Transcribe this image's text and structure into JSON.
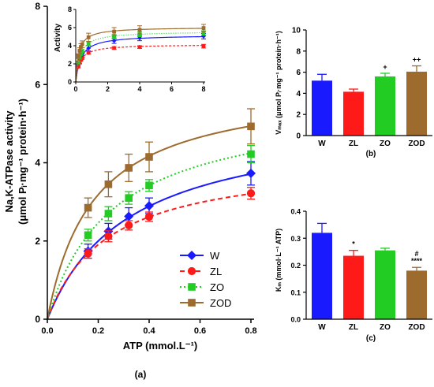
{
  "colors": {
    "W": "#1a1aff",
    "ZL": "#ff1a1a",
    "ZO": "#22cc22",
    "ZOD": "#9e6b2e"
  },
  "chart_data": [
    {
      "id": "a_main",
      "type": "scatter",
      "panel_label": "(a)",
      "xlabel": "ATP (mmol.L⁻¹)",
      "ylabel_line1": "Na,K-ATPase activity",
      "ylabel_line2": "(μmol Pᵢ·mg⁻¹ protein·h⁻¹)",
      "xlim": [
        0,
        0.8
      ],
      "ylim": [
        0,
        8
      ],
      "xticks": [
        "0.0",
        "0.2",
        "0.4",
        "0.6",
        "0.8"
      ],
      "xtick_values": [
        0,
        0.2,
        0.4,
        0.6,
        0.8
      ],
      "yticks": [
        "0",
        "2",
        "4",
        "6",
        "8"
      ],
      "ytick_values": [
        0,
        2,
        4,
        6,
        8
      ],
      "x": [
        0.16,
        0.24,
        0.32,
        0.4,
        0.8
      ],
      "legend": "lower-right",
      "series": [
        {
          "name": "W",
          "marker": "diamond",
          "line": "solid",
          "y": [
            1.74,
            2.25,
            2.63,
            2.9,
            3.73
          ],
          "err": [
            0.18,
            0.2,
            0.22,
            0.2,
            0.3
          ],
          "vmax": 5.2,
          "km": 0.32
        },
        {
          "name": "ZL",
          "marker": "circle",
          "line": "dashed",
          "y": [
            1.68,
            2.12,
            2.4,
            2.62,
            3.22
          ],
          "err": [
            0.12,
            0.14,
            0.12,
            0.12,
            0.15
          ],
          "vmax": 4.15,
          "km": 0.235
        },
        {
          "name": "ZO",
          "marker": "square",
          "line": "dotted",
          "y": [
            2.15,
            2.7,
            3.1,
            3.42,
            4.22
          ],
          "err": [
            0.15,
            0.18,
            0.16,
            0.15,
            0.22
          ],
          "vmax": 5.6,
          "km": 0.255
        },
        {
          "name": "ZOD",
          "marker": "square",
          "line": "solid",
          "y": [
            2.85,
            3.45,
            3.87,
            4.15,
            4.93
          ],
          "err": [
            0.25,
            0.32,
            0.35,
            0.38,
            0.45
          ],
          "vmax": 6.05,
          "km": 0.18
        }
      ]
    },
    {
      "id": "a_inset",
      "type": "scatter",
      "ylabel": "Activity",
      "xlim": [
        0,
        8
      ],
      "ylim": [
        0,
        8
      ],
      "xticks": [
        "0",
        "2",
        "4",
        "6",
        "8"
      ],
      "xtick_values": [
        0,
        2,
        4,
        6,
        8
      ],
      "yticks": [
        "0",
        "2",
        "4",
        "6",
        "8"
      ],
      "ytick_values": [
        0,
        2,
        4,
        6,
        8
      ],
      "x": [
        0.16,
        0.24,
        0.32,
        0.4,
        0.8,
        2.4,
        4.0,
        8.0
      ],
      "series": [
        {
          "name": "W",
          "y": [
            1.74,
            2.25,
            2.63,
            2.9,
            3.73,
            4.55,
            4.85,
            5.05
          ],
          "err": [
            0.18,
            0.2,
            0.22,
            0.2,
            0.3,
            0.3,
            0.3,
            0.3
          ]
        },
        {
          "name": "ZL",
          "y": [
            1.68,
            2.12,
            2.4,
            2.62,
            3.22,
            3.75,
            3.85,
            3.95
          ],
          "err": [
            0.12,
            0.14,
            0.12,
            0.12,
            0.15,
            0.15,
            0.15,
            0.2
          ]
        },
        {
          "name": "ZO",
          "y": [
            2.15,
            2.7,
            3.1,
            3.42,
            4.22,
            5.0,
            5.25,
            5.4
          ],
          "err": [
            0.15,
            0.18,
            0.16,
            0.15,
            0.22,
            0.25,
            0.25,
            0.25
          ]
        },
        {
          "name": "ZOD",
          "y": [
            2.85,
            3.45,
            3.87,
            4.15,
            4.93,
            5.55,
            5.75,
            5.95
          ],
          "err": [
            0.25,
            0.32,
            0.35,
            0.38,
            0.45,
            0.45,
            0.45,
            0.4
          ]
        }
      ]
    },
    {
      "id": "b_vmax",
      "type": "bar",
      "panel_label": "(b)",
      "ylabel": "Vₘₐₓ (μmol Pᵢ·mg⁻¹ protein·h⁻¹)",
      "ylim": [
        0,
        10
      ],
      "yticks": [
        "0",
        "2",
        "4",
        "6",
        "8",
        "10"
      ],
      "ytick_values": [
        0,
        2,
        4,
        6,
        8,
        10
      ],
      "categories": [
        "W",
        "ZL",
        "ZO",
        "ZOD"
      ],
      "values": [
        5.2,
        4.15,
        5.6,
        6.05
      ],
      "errors": [
        0.6,
        0.25,
        0.3,
        0.55
      ],
      "annotations": [
        "",
        "",
        "+",
        "++"
      ]
    },
    {
      "id": "c_km",
      "type": "bar",
      "panel_label": "(c)",
      "ylabel": "Kₘ (mmol·L⁻¹ ATP)",
      "ylim": [
        0,
        0.4
      ],
      "yticks": [
        "0.0",
        "0.1",
        "0.2",
        "0.3",
        "0.4"
      ],
      "ytick_values": [
        0,
        0.1,
        0.2,
        0.3,
        0.4
      ],
      "categories": [
        "W",
        "ZL",
        "ZO",
        "ZOD"
      ],
      "values": [
        0.32,
        0.235,
        0.255,
        0.18
      ],
      "errors": [
        0.035,
        0.02,
        0.008,
        0.012
      ],
      "annotations": [
        "",
        "*",
        "",
        "#\n****"
      ]
    }
  ]
}
